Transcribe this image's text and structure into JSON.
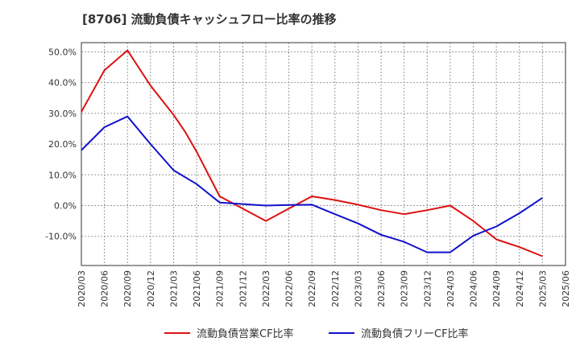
{
  "chart_data": {
    "type": "line",
    "title": "[8706]  流動負債キャッシュフロー比率の推移",
    "xlabel": "",
    "ylabel": "",
    "x": [
      "2020/03",
      "2020/06",
      "2020/09",
      "2020/12",
      "2021/03",
      "2021/06",
      "2021/09",
      "2021/12",
      "2022/03",
      "2022/06",
      "2022/09",
      "2022/12",
      "2023/03",
      "2023/06",
      "2023/09",
      "2023/12",
      "2024/03",
      "2024/06",
      "2024/09",
      "2024/12",
      "2025/03",
      "2025/06"
    ],
    "y_ticks": [
      50,
      40,
      30,
      20,
      10,
      0,
      -10
    ],
    "y_tick_labels": [
      "50.0%",
      "40.0%",
      "30.0%",
      "20.0%",
      "10.0%",
      "0.0%",
      "-10.0%"
    ],
    "ylim": [
      -19.5,
      53
    ],
    "grid": true,
    "legend_position": "bottom",
    "series": [
      {
        "name": "流動負債営業CF比率",
        "color": "#dd1111",
        "points": [
          {
            "x": 0,
            "y": 30.5
          },
          {
            "x": 1,
            "y": 44.0
          },
          {
            "x": 2,
            "y": 50.5
          },
          {
            "x": 3,
            "y": 39.0
          },
          {
            "x": 4,
            "y": 29.5
          },
          {
            "x": 4.5,
            "y": 24.0
          },
          {
            "x": 5,
            "y": 17.5
          },
          {
            "x": 6,
            "y": 3.0
          },
          {
            "x": 7,
            "y": -1.0
          },
          {
            "x": 8,
            "y": -5.0
          },
          {
            "x": 9,
            "y": -1.0
          },
          {
            "x": 10,
            "y": 3.0
          },
          {
            "x": 11,
            "y": 1.8
          },
          {
            "x": 12,
            "y": 0.3
          },
          {
            "x": 13,
            "y": -1.5
          },
          {
            "x": 14,
            "y": -2.8
          },
          {
            "x": 15,
            "y": -1.5
          },
          {
            "x": 16,
            "y": 0.0
          },
          {
            "x": 17,
            "y": -5.0
          },
          {
            "x": 18,
            "y": -11.0
          },
          {
            "x": 19,
            "y": -13.5
          },
          {
            "x": 20,
            "y": -16.5
          }
        ]
      },
      {
        "name": "流動負債フリーCF比率",
        "color": "#1111cc",
        "points": [
          {
            "x": 0,
            "y": 18.0
          },
          {
            "x": 1,
            "y": 25.5
          },
          {
            "x": 2,
            "y": 29.0
          },
          {
            "x": 3,
            "y": 20.0
          },
          {
            "x": 4,
            "y": 11.5
          },
          {
            "x": 5,
            "y": 7.0
          },
          {
            "x": 6,
            "y": 1.0
          },
          {
            "x": 7,
            "y": 0.5
          },
          {
            "x": 8,
            "y": 0.0
          },
          {
            "x": 9,
            "y": 0.2
          },
          {
            "x": 10,
            "y": 0.3
          },
          {
            "x": 11,
            "y": -2.8
          },
          {
            "x": 12,
            "y": -5.8
          },
          {
            "x": 13,
            "y": -9.5
          },
          {
            "x": 14,
            "y": -11.8
          },
          {
            "x": 15,
            "y": -15.2
          },
          {
            "x": 16,
            "y": -15.2
          },
          {
            "x": 17,
            "y": -9.8
          },
          {
            "x": 18,
            "y": -6.8
          },
          {
            "x": 19,
            "y": -2.5
          },
          {
            "x": 20,
            "y": 2.5
          }
        ]
      }
    ]
  }
}
